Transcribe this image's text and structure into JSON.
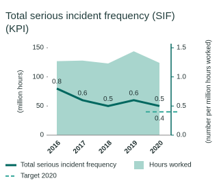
{
  "chart_data": {
    "type": "area-line",
    "title": "Total serious incident frequency (SIF) (KPI)",
    "y_label": "(million hours)",
    "y2_label": "(number per million hours worked)",
    "categories": [
      "2016",
      "2017",
      "2018",
      "2019",
      "2020"
    ],
    "ylim": [
      0,
      150
    ],
    "yticks": [
      0,
      50,
      100,
      150
    ],
    "y2lim": [
      0,
      1.5
    ],
    "y2ticks": [
      {
        "value": 0,
        "label": "0.0"
      },
      {
        "value": 0.5,
        "label": "0.5"
      },
      {
        "value": 1,
        "label": "1.0"
      },
      {
        "value": 1.5,
        "label": "1.5"
      }
    ],
    "series": [
      {
        "name": "Hours worked",
        "type": "area",
        "color": "#a8d5cd",
        "values": [
          127,
          128,
          123,
          144,
          124
        ]
      },
      {
        "name": "Total serious incident frequency",
        "type": "line",
        "axis": "y2",
        "color": "#00675f",
        "values": [
          0.8,
          0.6,
          0.5,
          0.6,
          0.5
        ]
      },
      {
        "name": "Target 2020",
        "type": "target",
        "axis": "y2",
        "color": "#3aa99c",
        "values": [
          null,
          null,
          null,
          null,
          0.4
        ]
      }
    ]
  }
}
